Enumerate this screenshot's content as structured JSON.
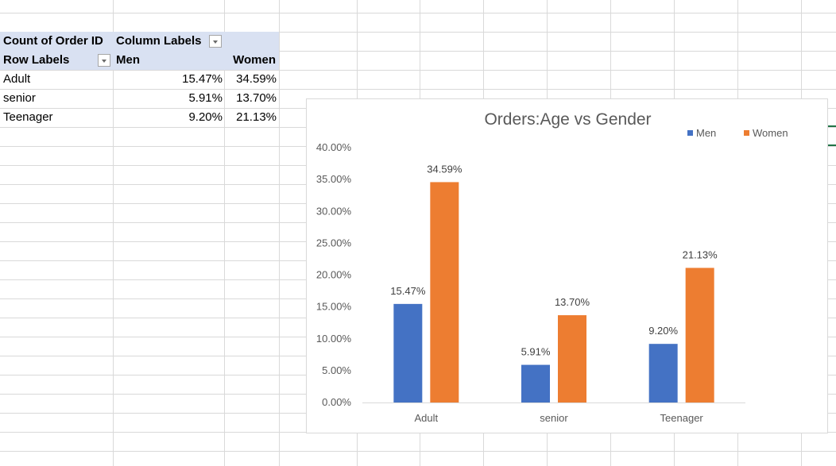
{
  "pivot": {
    "value_header": "Count of Order ID",
    "column_header": "Column Labels",
    "row_header": "Row Labels",
    "col_men": "Men",
    "col_women": "Women",
    "rows": [
      {
        "label": "Adult",
        "men": "15.47%",
        "women": "34.59%"
      },
      {
        "label": "senior",
        "men": "5.91%",
        "women": "13.70%"
      },
      {
        "label": "Teenager",
        "men": "9.20%",
        "women": "21.13%"
      }
    ]
  },
  "colors": {
    "men": "#4472c4",
    "women": "#ed7d31",
    "header": "#d9e1f2",
    "gridline": "#d9d9d9"
  },
  "chart_data": {
    "type": "bar",
    "title": "Orders:Age vs Gender",
    "categories": [
      "Adult",
      "senior",
      "Teenager"
    ],
    "series": [
      {
        "name": "Men",
        "values": [
          15.47,
          5.91,
          9.2
        ],
        "labels": [
          "15.47%",
          "5.91%",
          "9.20%"
        ]
      },
      {
        "name": "Women",
        "values": [
          34.59,
          13.7,
          21.13
        ],
        "labels": [
          "34.59%",
          "13.70%",
          "21.13%"
        ]
      }
    ],
    "ylim": [
      0,
      40
    ],
    "yticks": [
      "0.00%",
      "5.00%",
      "10.00%",
      "15.00%",
      "20.00%",
      "25.00%",
      "30.00%",
      "35.00%",
      "40.00%"
    ],
    "legend": "top-right",
    "gridlines": false
  }
}
